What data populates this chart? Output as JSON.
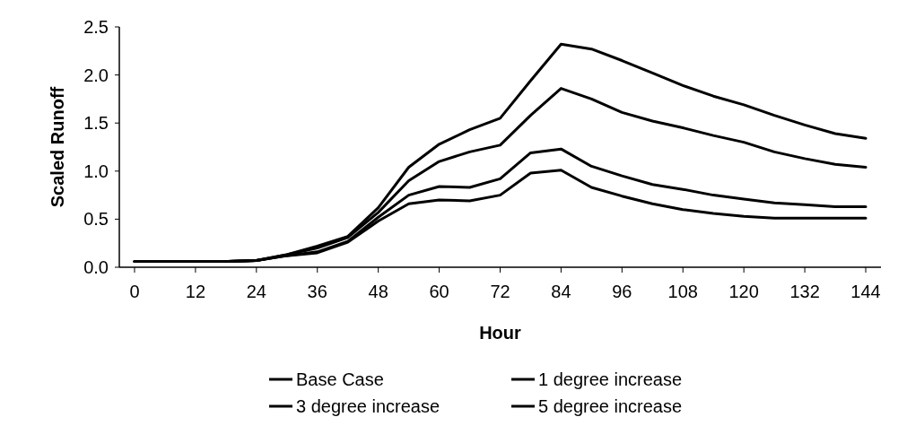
{
  "chart_data": {
    "type": "line",
    "xlabel": "Hour",
    "ylabel": "Scaled Runoff",
    "xlim": [
      -3,
      147
    ],
    "xticks": [
      0,
      12,
      24,
      36,
      48,
      60,
      72,
      84,
      96,
      108,
      120,
      132,
      144
    ],
    "ylim": [
      0,
      2.5
    ],
    "yticks": [
      {
        "value": 0,
        "label": "0.0"
      },
      {
        "value": 0.5,
        "label": "0.5"
      },
      {
        "value": 1,
        "label": "1.0"
      },
      {
        "value": 1.5,
        "label": "1.5"
      },
      {
        "value": 2,
        "label": "2.0"
      },
      {
        "value": 2.5,
        "label": "2.5"
      }
    ],
    "x": [
      0,
      6,
      12,
      18,
      24,
      30,
      36,
      42,
      48,
      54,
      60,
      66,
      72,
      78,
      84,
      90,
      96,
      102,
      108,
      114,
      120,
      126,
      132,
      138,
      144
    ],
    "legend": "bottom",
    "grid": false,
    "marker": "none",
    "line_style": "solid",
    "series": [
      {
        "name": "Base Case",
        "color": "#000000",
        "values": [
          0.06,
          0.06,
          0.06,
          0.06,
          0.07,
          0.12,
          0.15,
          0.26,
          0.48,
          0.66,
          0.7,
          0.69,
          0.75,
          0.98,
          1.01,
          0.83,
          0.74,
          0.66,
          0.6,
          0.56,
          0.53,
          0.51,
          0.51,
          0.51,
          0.51
        ]
      },
      {
        "name": "1 degree increase",
        "color": "#000000",
        "values": [
          0.06,
          0.06,
          0.06,
          0.06,
          0.07,
          0.12,
          0.16,
          0.27,
          0.52,
          0.75,
          0.84,
          0.83,
          0.92,
          1.19,
          1.23,
          1.05,
          0.95,
          0.86,
          0.81,
          0.75,
          0.71,
          0.67,
          0.65,
          0.63,
          0.63
        ]
      },
      {
        "name": "3 degree increase",
        "color": "#000000",
        "values": [
          0.06,
          0.06,
          0.06,
          0.06,
          0.07,
          0.13,
          0.2,
          0.31,
          0.57,
          0.9,
          1.1,
          1.2,
          1.27,
          1.58,
          1.86,
          1.75,
          1.61,
          1.52,
          1.45,
          1.37,
          1.3,
          1.2,
          1.13,
          1.07,
          1.04
        ]
      },
      {
        "name": "5 degree increase",
        "color": "#000000",
        "values": [
          0.06,
          0.06,
          0.06,
          0.06,
          0.07,
          0.13,
          0.22,
          0.32,
          0.62,
          1.04,
          1.28,
          1.43,
          1.55,
          1.94,
          2.32,
          2.27,
          2.15,
          2.02,
          1.89,
          1.78,
          1.69,
          1.58,
          1.48,
          1.39,
          1.34
        ]
      }
    ]
  }
}
